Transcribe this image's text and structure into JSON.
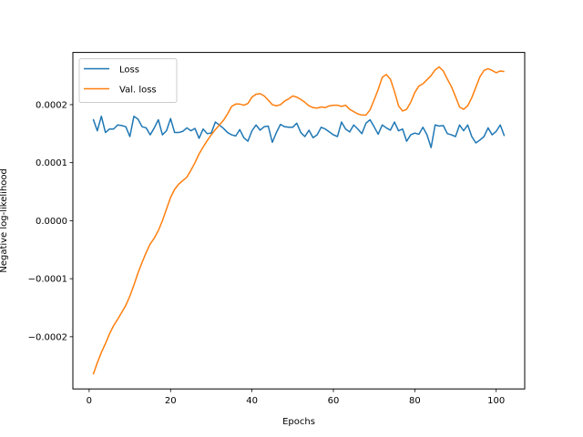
{
  "chart_data": {
    "type": "line",
    "title": "",
    "xlabel": "Epochs",
    "ylabel": "Negative log-likelihood",
    "xlim": [
      -4,
      107
    ],
    "ylim": [
      -0.00029,
      0.00029
    ],
    "xticks": [
      0,
      20,
      40,
      60,
      80,
      100
    ],
    "yticks": [
      -0.0002,
      -0.0001,
      0.0,
      0.0001,
      0.0002
    ],
    "ytick_labels": [
      "−0.0002",
      "−0.0001",
      "0.0000",
      "0.0001",
      "0.0002"
    ],
    "legend": {
      "position": "top-left"
    },
    "series": [
      {
        "name": "Loss",
        "color": "#1f77b4",
        "x": [
          1,
          2,
          3,
          4,
          5,
          6,
          7,
          8,
          9,
          10,
          11,
          12,
          13,
          14,
          15,
          16,
          17,
          18,
          19,
          20,
          21,
          22,
          23,
          24,
          25,
          26,
          27,
          28,
          29,
          30,
          31,
          32,
          33,
          34,
          35,
          36,
          37,
          38,
          39,
          40,
          41,
          42,
          43,
          44,
          45,
          46,
          47,
          48,
          49,
          50,
          51,
          52,
          53,
          54,
          55,
          56,
          57,
          58,
          59,
          60,
          61,
          62,
          63,
          64,
          65,
          66,
          67,
          68,
          69,
          70,
          71,
          72,
          73,
          74,
          75,
          76,
          77,
          78,
          79,
          80,
          81,
          82,
          83,
          84,
          85,
          86,
          87,
          88,
          89,
          90,
          91,
          92,
          93,
          94,
          95,
          96,
          97,
          98,
          99,
          100,
          101,
          102
        ],
        "y": [
          0.000175,
          0.000155,
          0.00018,
          0.000152,
          0.000158,
          0.000158,
          0.000165,
          0.000164,
          0.000162,
          0.000145,
          0.00018,
          0.000175,
          0.000162,
          0.00016,
          0.000148,
          0.00016,
          0.000174,
          0.000148,
          0.000155,
          0.000176,
          0.000152,
          0.000152,
          0.000154,
          0.00016,
          0.000155,
          0.000159,
          0.000142,
          0.000158,
          0.00015,
          0.000151,
          0.00017,
          0.000165,
          0.000159,
          0.000152,
          0.000148,
          0.000146,
          0.000157,
          0.000143,
          0.000137,
          0.000155,
          0.000165,
          0.000156,
          0.000162,
          0.000163,
          0.000135,
          0.000152,
          0.000166,
          0.000162,
          0.000161,
          0.000161,
          0.000168,
          0.000152,
          0.000145,
          0.000156,
          0.000143,
          0.000148,
          0.000161,
          0.000158,
          0.000153,
          0.000148,
          0.000145,
          0.00017,
          0.000158,
          0.000153,
          0.000165,
          0.000158,
          0.00015,
          0.000168,
          0.000174,
          0.000162,
          0.000149,
          0.000165,
          0.00016,
          0.000156,
          0.00017,
          0.000155,
          0.000158,
          0.000137,
          0.000148,
          0.000151,
          0.000149,
          0.000161,
          0.000148,
          0.000126,
          0.000165,
          0.000163,
          0.000164,
          0.00015,
          0.000148,
          0.000145,
          0.000165,
          0.000155,
          0.000165,
          0.000145,
          0.000134,
          0.000139,
          0.000145,
          0.00016,
          0.000148,
          0.000154,
          0.000165,
          0.000146
        ]
      },
      {
        "name": "Val. loss",
        "color": "#ff7f0e",
        "x": [
          1,
          2,
          3,
          4,
          5,
          6,
          7,
          8,
          9,
          10,
          11,
          12,
          13,
          14,
          15,
          16,
          17,
          18,
          19,
          20,
          21,
          22,
          23,
          24,
          25,
          26,
          27,
          28,
          29,
          30,
          31,
          32,
          33,
          34,
          35,
          36,
          37,
          38,
          39,
          40,
          41,
          42,
          43,
          44,
          45,
          46,
          47,
          48,
          49,
          50,
          51,
          52,
          53,
          54,
          55,
          56,
          57,
          58,
          59,
          60,
          61,
          62,
          63,
          64,
          65,
          66,
          67,
          68,
          69,
          70,
          71,
          72,
          73,
          74,
          75,
          76,
          77,
          78,
          79,
          80,
          81,
          82,
          83,
          84,
          85,
          86,
          87,
          88,
          89,
          90,
          91,
          92,
          93,
          94,
          95,
          96,
          97,
          98,
          99,
          100,
          101,
          102
        ],
        "y": [
          -0.000265,
          -0.000245,
          -0.000227,
          -0.000212,
          -0.000195,
          -0.000181,
          -0.00017,
          -0.000158,
          -0.000146,
          -0.00013,
          -0.000111,
          -9e-05,
          -7.2e-05,
          -5.5e-05,
          -4e-05,
          -3e-05,
          -1.7e-05,
          -0.0,
          2e-05,
          4e-05,
          5.4e-05,
          6.3e-05,
          6.9e-05,
          7.5e-05,
          8.7e-05,
          0.0001,
          0.000115,
          0.000127,
          0.000138,
          0.000148,
          0.000157,
          0.000165,
          0.000173,
          0.000184,
          0.000197,
          0.000201,
          0.000201,
          0.000199,
          0.000202,
          0.000213,
          0.000218,
          0.000219,
          0.000215,
          0.000208,
          0.0002,
          0.000198,
          0.0002,
          0.000206,
          0.00021,
          0.000215,
          0.000213,
          0.000209,
          0.000204,
          0.000198,
          0.000195,
          0.000194,
          0.000196,
          0.000195,
          0.000198,
          0.000199,
          0.000199,
          0.000197,
          0.000199,
          0.000192,
          0.000188,
          0.000184,
          0.000182,
          0.000182,
          0.000191,
          0.000208,
          0.000226,
          0.000247,
          0.000252,
          0.000244,
          0.000223,
          0.000198,
          0.000189,
          0.000192,
          0.000204,
          0.000221,
          0.000232,
          0.000236,
          0.000243,
          0.00025,
          0.00026,
          0.000265,
          0.000258,
          0.000244,
          0.000231,
          0.000214,
          0.000196,
          0.000192,
          0.000198,
          0.000212,
          0.00023,
          0.000248,
          0.000259,
          0.000262,
          0.000259,
          0.000255,
          0.000258,
          0.000257
        ]
      }
    ]
  }
}
